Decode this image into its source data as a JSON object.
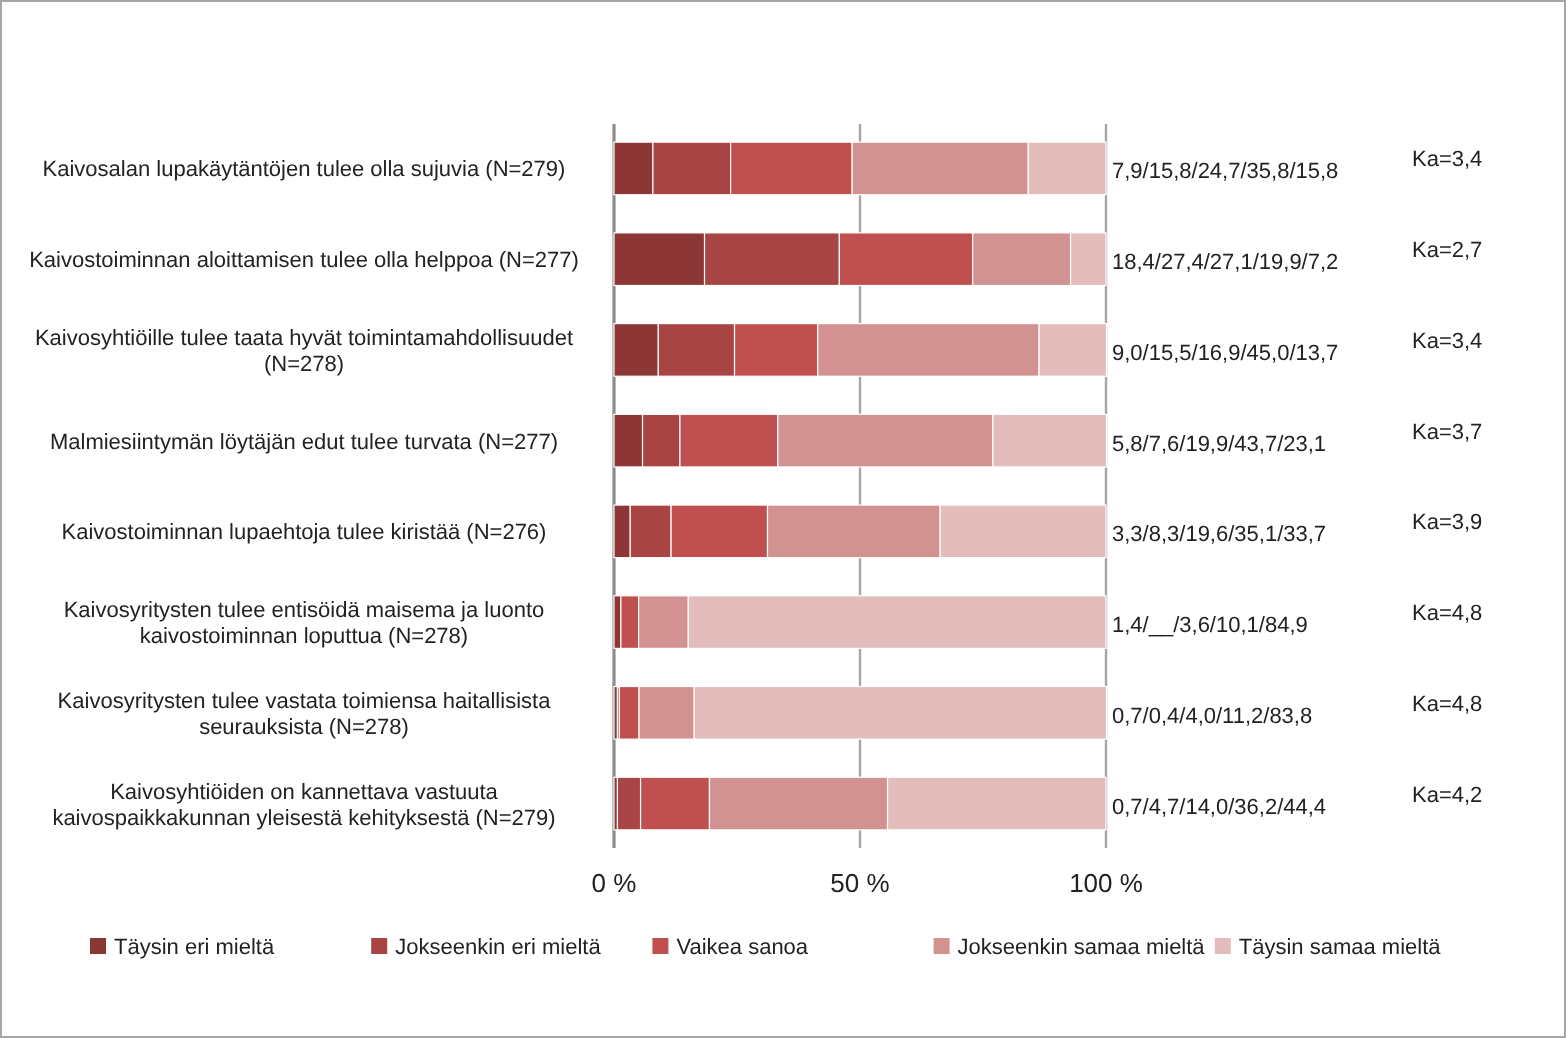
{
  "chart_data": {
    "type": "bar",
    "orientation": "horizontal",
    "stacked": true,
    "categories": [
      "Kaivosalan lupakäytäntöjen tulee olla sujuvia (N=279)",
      "Kaivostoiminnan aloittamisen tulee olla helppoa (N=277)",
      "Kaivosyhtiöille tulee taata hyvät toimintamahdollisuudet (N=278)",
      "Malmiesiintymän löytäjän edut tulee turvata (N=277)",
      "Kaivostoiminnan lupaehtoja tulee kiristää (N=276)",
      "Kaivosyritysten tulee entisöidä maisema ja luonto kaivostoiminnan loputtua (N=278)",
      "Kaivosyritysten tulee vastata toimiensa haitallisista seurauksista (N=278)",
      "Kaivosyhtiöiden on kannettava vastuuta kaivospaikkakunnan yleisestä kehityksestä (N=279)"
    ],
    "series": [
      {
        "name": "Täysin eri mieltä",
        "color": "#8c3636",
        "values": [
          7.9,
          18.4,
          9.0,
          5.8,
          3.3,
          1.4,
          0.7,
          0.7
        ]
      },
      {
        "name": "Jokseenkin eri mieltä",
        "color": "#a84444",
        "values": [
          15.8,
          27.4,
          15.5,
          7.6,
          8.3,
          null,
          0.4,
          4.7
        ]
      },
      {
        "name": "Vaikea sanoa",
        "color": "#c0504f",
        "values": [
          24.7,
          27.1,
          16.9,
          19.9,
          19.6,
          3.6,
          4.0,
          14.0
        ]
      },
      {
        "name": "Jokseenkin samaa mieltä",
        "color": "#d39292",
        "values": [
          35.8,
          19.9,
          45.0,
          43.7,
          35.1,
          10.1,
          11.2,
          36.2
        ]
      },
      {
        "name": "Täysin samaa mieltä",
        "color": "#e3bcbc",
        "values": [
          15.8,
          7.2,
          13.7,
          23.1,
          33.7,
          84.9,
          83.8,
          44.4
        ]
      }
    ],
    "xlim": [
      0,
      100
    ],
    "xticks": [
      {
        "value": 0,
        "label": "0 %"
      },
      {
        "value": 50,
        "label": "50 %"
      },
      {
        "value": 100,
        "label": "100 %"
      }
    ],
    "grid": "x",
    "legend": "bottom",
    "annotations": [
      "7,9/15,8/24,7/35,8/15,8",
      "Ka=3,4",
      "18,4/27,4/27,1/19,9/7,2",
      "Ka=2,7",
      "9,0/15,5/16,9/45,0/13,7",
      "Ka=3,4",
      "5,8/7,6/19,9/43,7/23,1",
      "Ka=3,7",
      "3,3/8,3/19,6/35,1/33,7",
      "Ka=3,9",
      "1,4/__/3,6/10,1/84,9",
      "Ka=4,8",
      "0,7/0,4/4,0/11,2/83,8",
      "Ka=4,8",
      "0,7/4,7/14,0/36,2/44,4",
      "Ka=4,2"
    ]
  }
}
